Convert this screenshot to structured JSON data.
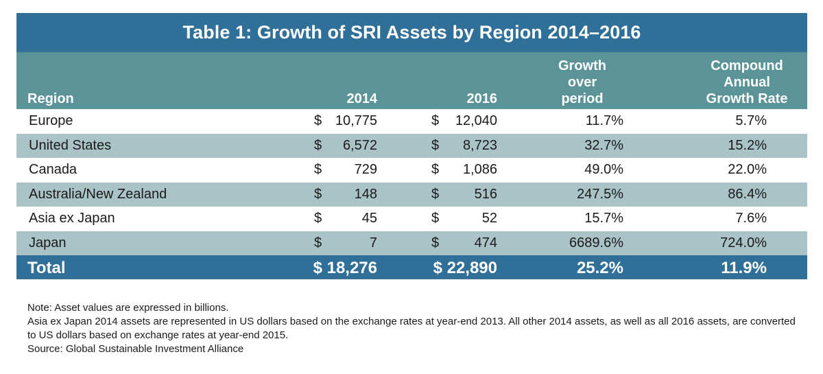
{
  "title": "Table 1: Growth of SRI Assets by Region 2014–2016",
  "headers": {
    "region": "Region",
    "y2014": "2014",
    "y2016": "2016",
    "growth": [
      "Growth",
      "over",
      "period"
    ],
    "cagr": [
      "Compound",
      "Annual",
      "Growth Rate"
    ]
  },
  "rows": [
    {
      "region": "Europe",
      "d14": "$",
      "v14": "10,775",
      "d16": "$",
      "v16": "12,040",
      "growth": "11.7%",
      "cagr": "5.7%"
    },
    {
      "region": "United States",
      "d14": "$",
      "v14": "6,572",
      "d16": "$",
      "v16": "8,723",
      "growth": "32.7%",
      "cagr": "15.2%"
    },
    {
      "region": "Canada",
      "d14": "$",
      "v14": "729",
      "d16": "$",
      "v16": "1,086",
      "growth": "49.0%",
      "cagr": "22.0%"
    },
    {
      "region": "Australia/New Zealand",
      "d14": "$",
      "v14": "148",
      "d16": "$",
      "v16": "516",
      "growth": "247.5%",
      "cagr": "86.4%"
    },
    {
      "region": "Asia ex Japan",
      "d14": "$",
      "v14": "45",
      "d16": "$",
      "v16": "52",
      "growth": "15.7%",
      "cagr": "7.6%"
    },
    {
      "region": "Japan",
      "d14": "$",
      "v14": "7",
      "d16": "$",
      "v16": "474",
      "growth": "6689.6%",
      "cagr": "724.0%"
    }
  ],
  "total": {
    "region": "Total",
    "v14": "$ 18,276",
    "v16": "$ 22,890",
    "growth": "25.2%",
    "cagr": "11.9%"
  },
  "notes": [
    "Note: Asset values are expressed in billions.",
    "Asia ex Japan 2014 assets are represented in US dollars based on the exchange rates at year-end 2013.  All other 2014 assets, as well as all 2016 assets, are converted to US dollars based on exchange rates at year-end 2015.",
    "Source: Global Sustainable Investment Alliance"
  ],
  "colors": {
    "title_bg": "#2f6f98",
    "header_bg": "#5b9498",
    "shaded_row": "#a9c3c6",
    "total_bg": "#2f6f98"
  }
}
